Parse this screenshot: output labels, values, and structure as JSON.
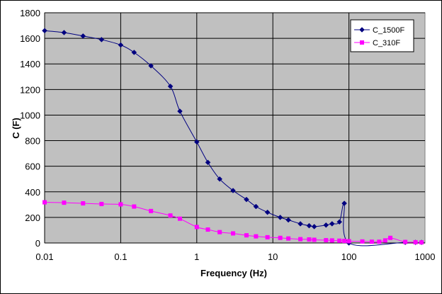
{
  "chart_data": {
    "type": "scatter",
    "xlabel": "Frequency (Hz)",
    "ylabel": "C (F)",
    "x_scale": "log",
    "xlim": [
      0.01,
      1000
    ],
    "ylim": [
      0,
      1800
    ],
    "x_ticks": [
      "0.01",
      "0.1",
      "1",
      "10",
      "100",
      "1000"
    ],
    "y_ticks": [
      "0",
      "200",
      "400",
      "600",
      "800",
      "1000",
      "1200",
      "1400",
      "1600",
      "1800"
    ],
    "grid": true,
    "legend_position": "top-right",
    "series": [
      {
        "name": "C_1500F",
        "color": "#000080",
        "marker": "diamond",
        "line": "smooth",
        "x": [
          0.01,
          0.018,
          0.032,
          0.056,
          0.1,
          0.15,
          0.25,
          0.45,
          0.6,
          1.0,
          1.4,
          2.0,
          3.0,
          4.5,
          6.0,
          8.5,
          12.5,
          16,
          23,
          30,
          35,
          50,
          60,
          75,
          87,
          100,
          550,
          750,
          900
        ],
        "y": [
          1660,
          1645,
          1618,
          1590,
          1548,
          1490,
          1385,
          1225,
          1030,
          790,
          630,
          500,
          410,
          340,
          285,
          240,
          200,
          180,
          150,
          135,
          128,
          140,
          150,
          165,
          310,
          0,
          5,
          5,
          5
        ]
      },
      {
        "name": "C_310F",
        "color": "#FF00FF",
        "marker": "square",
        "line": "smooth",
        "x": [
          0.01,
          0.018,
          0.032,
          0.056,
          0.1,
          0.15,
          0.25,
          0.45,
          0.6,
          1.0,
          1.4,
          2.0,
          3.0,
          4.5,
          6.0,
          8.5,
          12.5,
          16,
          23,
          30,
          35,
          50,
          60,
          75,
          87,
          100,
          150,
          200,
          250,
          300,
          350,
          550,
          750,
          900
        ],
        "y": [
          318,
          315,
          310,
          305,
          302,
          285,
          250,
          215,
          190,
          125,
          105,
          85,
          75,
          60,
          52,
          45,
          40,
          35,
          30,
          28,
          25,
          22,
          20,
          18,
          16,
          14,
          12,
          10,
          10,
          20,
          40,
          8,
          6,
          5
        ]
      }
    ]
  }
}
